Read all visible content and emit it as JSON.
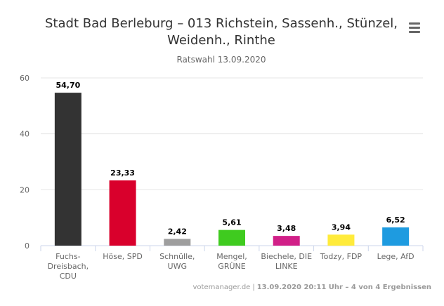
{
  "chart_data": {
    "type": "bar",
    "title": "Stadt Bad Berleburg – 013 Richstein, Sassenh., Stünzel, Weidenh., Rinthe",
    "subtitle": "Ratswahl 13.09.2020",
    "categories": [
      [
        "Fuchs-",
        "Dreisbach,",
        "CDU"
      ],
      [
        "Höse, SPD"
      ],
      [
        "Schnülle,",
        "UWG"
      ],
      [
        "Mengel,",
        "GRÜNE"
      ],
      [
        "Biechele, DIE",
        "LINKE"
      ],
      [
        "Todzy, FDP"
      ],
      [
        "Lege, AfD"
      ]
    ],
    "values": [
      54.7,
      23.33,
      2.42,
      5.61,
      3.48,
      3.94,
      6.52
    ],
    "value_labels": [
      "54,70",
      "23,33",
      "2,42",
      "5,61",
      "3,48",
      "3,94",
      "6,52"
    ],
    "colors": [
      "#333333",
      "#d9002c",
      "#9e9e9e",
      "#3fcb1f",
      "#d12088",
      "#ffeb3b",
      "#1e9be0"
    ],
    "ylim": [
      0,
      60
    ],
    "yticks": [
      0,
      20,
      40,
      60
    ],
    "grid": true,
    "legend": "none"
  },
  "title_lines": [
    "Stadt Bad Berleburg – 013 Richstein, Sassenh., Stünzel,",
    "Weidenh., Rinthe"
  ],
  "menu_icon": "hamburger-menu-icon",
  "credits": {
    "source": "votemanager.de",
    "separator": "|",
    "timestamp": "13.09.2020 20:11 Uhr – 4 von 4 Ergebnissen"
  }
}
